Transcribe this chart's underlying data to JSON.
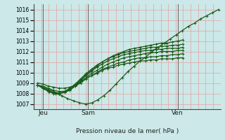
{
  "xlabel": "Pression niveau de la mer( hPa )",
  "bg_color": "#cce8e8",
  "grid_color": "#e8a0a0",
  "line_color": "#1a5c1a",
  "vline_color": "#666666",
  "xlim": [
    0,
    100
  ],
  "ylim": [
    1006.5,
    1016.5
  ],
  "yticks": [
    1007,
    1008,
    1009,
    1010,
    1011,
    1012,
    1013,
    1014,
    1015,
    1016
  ],
  "xtick_positions": [
    5,
    29,
    77
  ],
  "xtick_labels": [
    "Jeu",
    "Sam",
    "Ven"
  ],
  "vline_positions": [
    5,
    29,
    77
  ],
  "series_x_end": [
    99,
    80,
    80,
    80,
    80,
    80,
    80
  ],
  "series": [
    [
      1008.8,
      1008.5,
      1008.2,
      1008.0,
      1007.8,
      1007.5,
      1007.3,
      1007.1,
      1007.0,
      1007.1,
      1007.4,
      1007.8,
      1008.3,
      1008.9,
      1009.5,
      1010.1,
      1010.6,
      1011.1,
      1011.5,
      1012.0,
      1012.4,
      1012.8,
      1013.2,
      1013.6,
      1014.0,
      1014.4,
      1014.7,
      1015.1,
      1015.4,
      1015.7,
      1016.0
    ],
    [
      1008.8,
      1008.5,
      1008.2,
      1008.0,
      1008.0,
      1008.1,
      1008.4,
      1008.8,
      1009.3,
      1009.8,
      1010.2,
      1010.6,
      1011.0,
      1011.3,
      1011.6,
      1011.8,
      1012.0,
      1012.2,
      1012.3,
      1012.4,
      1012.5,
      1012.6,
      1012.7,
      1012.8,
      1012.8,
      1012.9,
      1013.0,
      1013.1
    ],
    [
      1008.8,
      1008.5,
      1008.2,
      1008.0,
      1008.0,
      1008.2,
      1008.5,
      1008.9,
      1009.4,
      1009.9,
      1010.3,
      1010.7,
      1011.0,
      1011.3,
      1011.5,
      1011.7,
      1011.9,
      1012.0,
      1012.1,
      1012.2,
      1012.3,
      1012.4,
      1012.4,
      1012.5,
      1012.5,
      1012.6,
      1012.6,
      1012.7
    ],
    [
      1008.8,
      1008.6,
      1008.3,
      1008.1,
      1008.0,
      1008.1,
      1008.4,
      1008.8,
      1009.2,
      1009.7,
      1010.1,
      1010.5,
      1010.8,
      1011.1,
      1011.3,
      1011.5,
      1011.7,
      1011.8,
      1011.9,
      1012.0,
      1012.1,
      1012.1,
      1012.2,
      1012.2,
      1012.3,
      1012.3,
      1012.3,
      1012.4
    ],
    [
      1008.8,
      1008.6,
      1008.4,
      1008.2,
      1008.0,
      1008.1,
      1008.3,
      1008.7,
      1009.1,
      1009.5,
      1009.9,
      1010.2,
      1010.5,
      1010.8,
      1011.0,
      1011.2,
      1011.4,
      1011.5,
      1011.6,
      1011.7,
      1011.8,
      1011.9,
      1011.9,
      1012.0,
      1012.0,
      1012.0,
      1012.1,
      1012.1
    ],
    [
      1008.8,
      1008.7,
      1008.5,
      1008.3,
      1008.2,
      1008.2,
      1008.4,
      1008.7,
      1009.0,
      1009.4,
      1009.7,
      1010.0,
      1010.3,
      1010.5,
      1010.7,
      1010.9,
      1011.0,
      1011.2,
      1011.3,
      1011.4,
      1011.4,
      1011.5,
      1011.5,
      1011.6,
      1011.6,
      1011.7,
      1011.7,
      1011.8
    ],
    [
      1009.0,
      1008.9,
      1008.7,
      1008.6,
      1008.5,
      1008.5,
      1008.6,
      1008.8,
      1009.1,
      1009.4,
      1009.7,
      1009.9,
      1010.2,
      1010.4,
      1010.5,
      1010.7,
      1010.8,
      1010.9,
      1011.0,
      1011.1,
      1011.1,
      1011.2,
      1011.2,
      1011.3,
      1011.3,
      1011.3,
      1011.4,
      1011.4
    ]
  ],
  "marker": "+",
  "marker_size": 3.5,
  "linewidth": 0.9,
  "ytick_fontsize": 5.5,
  "xtick_fontsize": 6.5
}
